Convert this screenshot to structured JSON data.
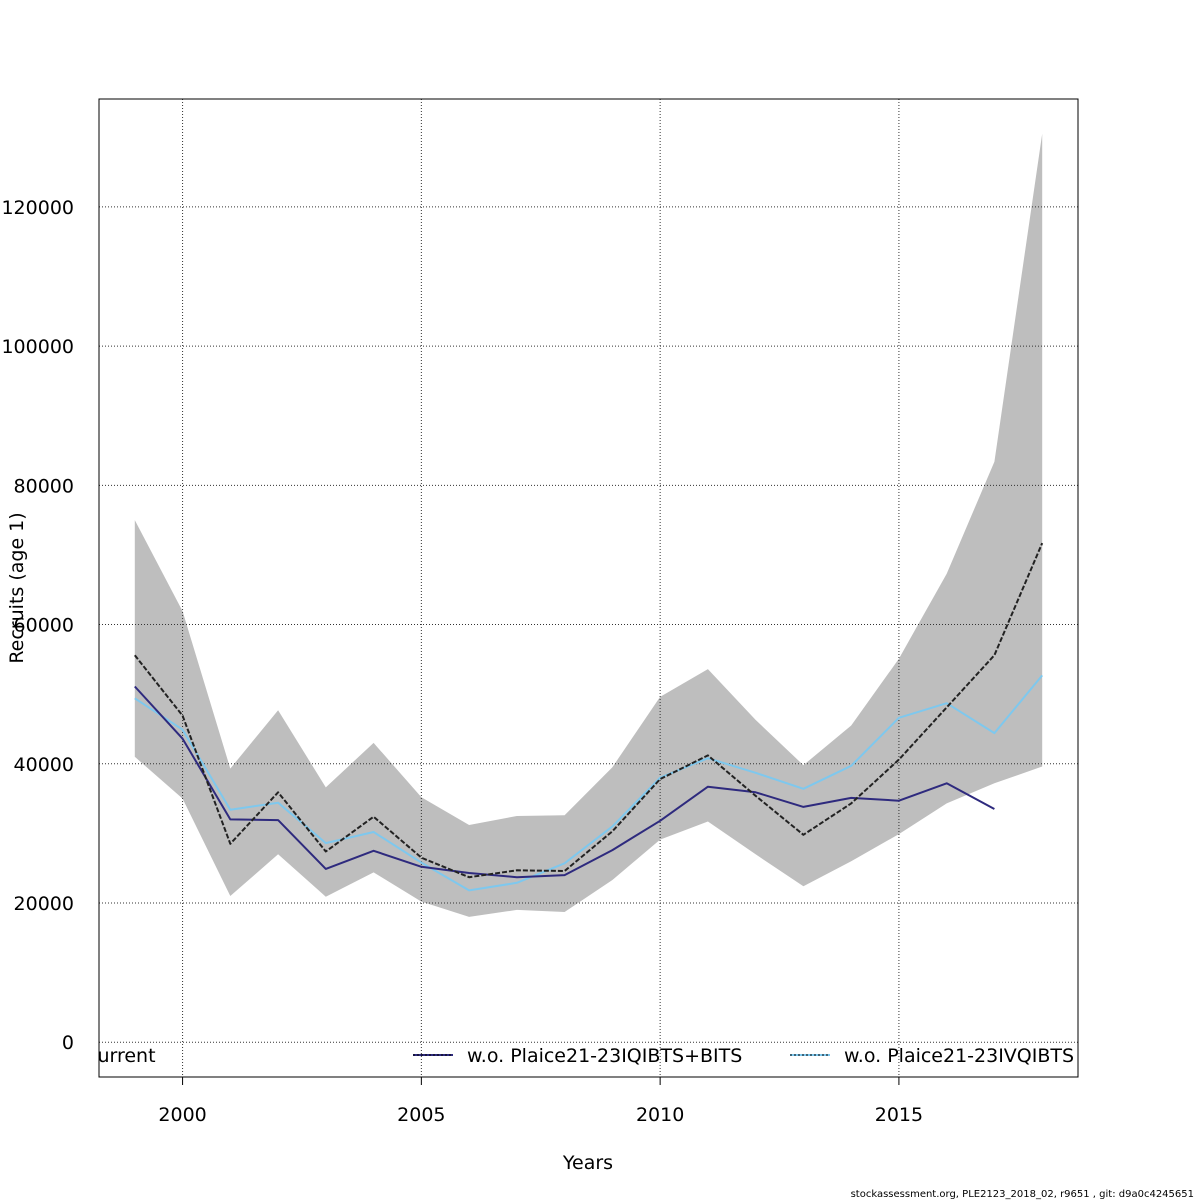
{
  "chart_data": {
    "type": "line",
    "title": "",
    "xlabel": "Years",
    "ylabel": "Recruits (age 1)",
    "xlim": [
      1998.25,
      2018.75
    ],
    "ylim": [
      -5000,
      135500
    ],
    "xticks": [
      2000,
      2005,
      2010,
      2015
    ],
    "yticks": [
      0,
      20000,
      40000,
      60000,
      80000,
      100000,
      120000
    ],
    "ytick_labels": [
      "0",
      "20000",
      "40000",
      "60000",
      "80000",
      "100000",
      "120000"
    ],
    "grid": true,
    "confidence_band": {
      "x": [
        1999,
        2000,
        2001,
        2002,
        2003,
        2004,
        2005,
        2006,
        2007,
        2008,
        2009,
        2010,
        2011,
        2012,
        2013,
        2014,
        2015,
        2016,
        2017,
        2018
      ],
      "upper": [
        75000,
        61900,
        39300,
        47700,
        36600,
        43000,
        35200,
        31200,
        32500,
        32600,
        39500,
        49600,
        53600,
        46300,
        39800,
        45500,
        55100,
        67300,
        83400,
        130500
      ],
      "lower": [
        41000,
        35000,
        21000,
        27000,
        20900,
        24400,
        20200,
        18000,
        19000,
        18700,
        23300,
        29100,
        31700,
        27000,
        22400,
        26000,
        29900,
        34300,
        37200,
        39600
      ],
      "color": "#bebebe"
    },
    "series": [
      {
        "name": "current",
        "color": "#222222",
        "dash": "dashed",
        "x": [
          1999,
          2000,
          2001,
          2002,
          2003,
          2004,
          2005,
          2006,
          2007,
          2008,
          2009,
          2010,
          2011,
          2012,
          2013,
          2014,
          2015,
          2016,
          2017,
          2018
        ],
        "values": [
          55600,
          46900,
          28500,
          35900,
          27400,
          32400,
          26500,
          23700,
          24700,
          24600,
          30300,
          37800,
          41200,
          35400,
          29800,
          34300,
          40600,
          48100,
          55600,
          71700
        ]
      },
      {
        "name": "w.o. Plaice21-23IQIBTS+BITS",
        "color": "#2e2a7e",
        "dash": "solid",
        "x": [
          1999,
          2000,
          2001,
          2002,
          2003,
          2004,
          2005,
          2006,
          2007,
          2008,
          2009,
          2010,
          2011,
          2012,
          2013,
          2014,
          2015,
          2016,
          2017
        ],
        "values": [
          51100,
          43600,
          32000,
          31900,
          24900,
          27500,
          25200,
          24300,
          23700,
          24000,
          27600,
          31800,
          36700,
          35900,
          33800,
          35100,
          34700,
          37200,
          33500
        ]
      },
      {
        "name": "w.o. Plaice21-23IVQIBTS",
        "color": "#7ec8ee",
        "dash": "solid",
        "x": [
          1999,
          2000,
          2001,
          2002,
          2003,
          2004,
          2005,
          2006,
          2007,
          2008,
          2009,
          2010,
          2011,
          2012,
          2013,
          2014,
          2015,
          2016,
          2017,
          2018
        ],
        "values": [
          49400,
          44900,
          33400,
          34400,
          28600,
          30200,
          25800,
          21800,
          22900,
          25700,
          31000,
          38000,
          40800,
          38700,
          36400,
          39700,
          46600,
          48700,
          44400,
          52700
        ]
      }
    ],
    "legend": {
      "placement": "bottom",
      "entries": [
        {
          "label": "current",
          "marker": "none"
        },
        {
          "label": "w.o. Plaice21-23IQIBTS+BITS",
          "marker": "line"
        },
        {
          "label": "w.o. Plaice21-23IVQIBTS",
          "marker": "dotted-line"
        }
      ]
    },
    "footer": "stockassessment.org, PLE2123_2018_02, r9651 , git: d9a0c4245651"
  }
}
